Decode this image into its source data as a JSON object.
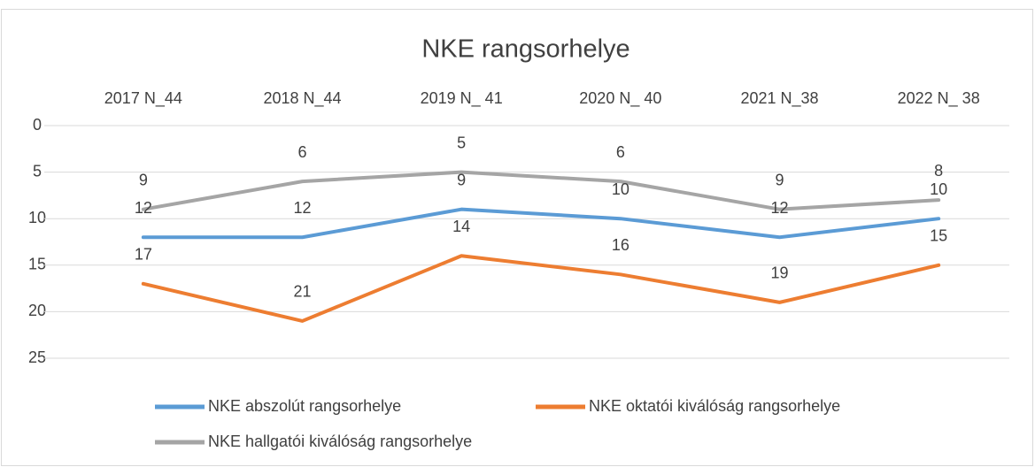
{
  "chart_data": {
    "type": "line",
    "title": "NKE rangsorhelye",
    "categories": [
      "2017 N_44",
      "2018 N_44",
      "2019 N_ 41",
      "2020  N_ 40",
      "2021 N_38",
      "2022 N_ 38"
    ],
    "series": [
      {
        "name": "NKE abszolút rangsorhelye",
        "color": "#5b9bd5",
        "values": [
          12,
          12,
          9,
          10,
          12,
          10
        ]
      },
      {
        "name": "NKE oktatói kiválóság rangsorhelye",
        "color": "#ed7d31",
        "values": [
          17,
          21,
          14,
          16,
          19,
          15
        ]
      },
      {
        "name": "NKE hallgatói kiválóság rangsorhelye",
        "color": "#a5a5a5",
        "values": [
          9,
          6,
          5,
          6,
          9,
          8
        ]
      }
    ],
    "ylim": [
      0,
      25
    ],
    "yticks": [
      0,
      5,
      10,
      15,
      20,
      25
    ],
    "y_inverted": true,
    "x_axis_position": "top",
    "grid": true,
    "legend": "bottom",
    "data_labels": true
  }
}
